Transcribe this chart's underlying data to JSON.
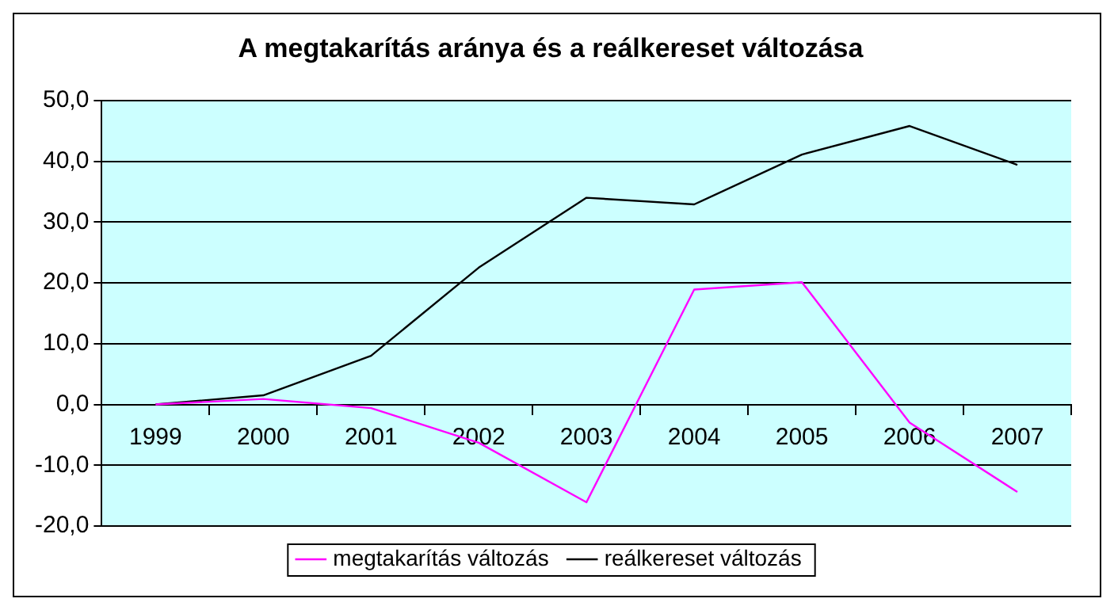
{
  "chart_data": {
    "type": "line",
    "title": "A megtakarítás aránya és a reálkereset változása",
    "categories": [
      "1999",
      "2000",
      "2001",
      "2002",
      "2003",
      "2004",
      "2005",
      "2006",
      "2007"
    ],
    "series": [
      {
        "name": "megtakarítás változás",
        "color": "#ff00ff",
        "values": [
          0,
          0.9,
          -0.6,
          -6.3,
          -16.1,
          18.9,
          20.1,
          -3.0,
          -14.4
        ]
      },
      {
        "name": "reálkereset változás",
        "color": "#000000",
        "values": [
          0,
          1.5,
          8.0,
          22.5,
          34.0,
          32.9,
          41.1,
          45.8,
          39.4
        ]
      }
    ],
    "ylim": [
      -20,
      50
    ],
    "yticks": [
      {
        "value": -20,
        "label": "-20,0"
      },
      {
        "value": -10,
        "label": "-10,0"
      },
      {
        "value": 0,
        "label": "0,0"
      },
      {
        "value": 10,
        "label": "10,0"
      },
      {
        "value": 20,
        "label": "20,0"
      },
      {
        "value": 30,
        "label": "30,0"
      },
      {
        "value": 40,
        "label": "40,0"
      },
      {
        "value": 50,
        "label": "50,0"
      }
    ],
    "grid": "y",
    "legend": "bottom",
    "marker": "none",
    "line_style": "solid"
  }
}
